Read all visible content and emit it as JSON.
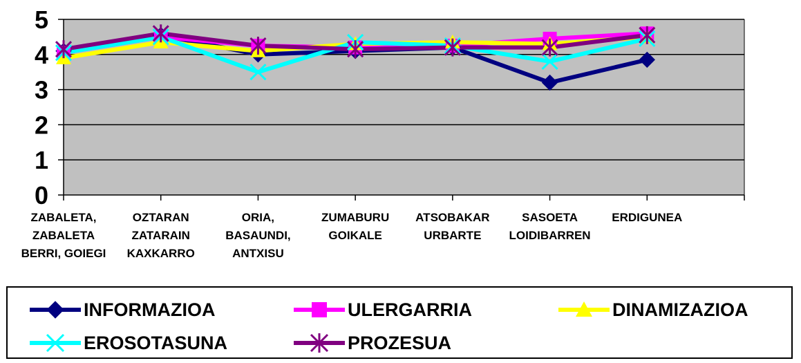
{
  "chart_data": {
    "type": "line",
    "categories": [
      [
        "ZABALETA,",
        "ZABALETA",
        "BERRI, GOIEGI"
      ],
      [
        "OZTARAN",
        "ZATARAIN",
        "KAXKARRO"
      ],
      [
        "ORIA,",
        "BASAUNDI,",
        "ANTXISU"
      ],
      [
        "ZUMABURU",
        "GOIKALE"
      ],
      [
        "ATSOBAKAR",
        "URBARTE"
      ],
      [
        "SASOETA",
        "LOIDIBARREN"
      ],
      [
        "ERDIGUNEA"
      ]
    ],
    "ylim": [
      0,
      5
    ],
    "yticks": [
      "0",
      "1",
      "2",
      "3",
      "4",
      "5"
    ],
    "plot_background": "#C0C0C0",
    "grid": true,
    "legend_position": "bottom",
    "series": [
      {
        "name": "INFORMAZIOA",
        "color": "#000080",
        "marker": "diamond",
        "values": [
          4.1,
          4.55,
          4.0,
          4.1,
          4.2,
          3.2,
          3.85
        ]
      },
      {
        "name": "ULERGARRIA",
        "color": "#FF00FF",
        "marker": "square",
        "values": [
          4.05,
          4.5,
          4.25,
          4.2,
          4.25,
          4.45,
          4.6
        ]
      },
      {
        "name": "DINAMIZAZIOA",
        "color": "#FFFF00",
        "marker": "triangle",
        "values": [
          3.9,
          4.35,
          4.1,
          4.3,
          4.35,
          4.3,
          4.5
        ]
      },
      {
        "name": "EROSOTASUNA",
        "color": "#00FFFF",
        "marker": "x",
        "values": [
          4.05,
          4.5,
          3.5,
          4.35,
          4.25,
          3.8,
          4.45
        ]
      },
      {
        "name": "PROZESUA",
        "color": "#800080",
        "marker": "star",
        "values": [
          4.15,
          4.6,
          4.25,
          4.15,
          4.2,
          4.2,
          4.55
        ]
      }
    ]
  }
}
